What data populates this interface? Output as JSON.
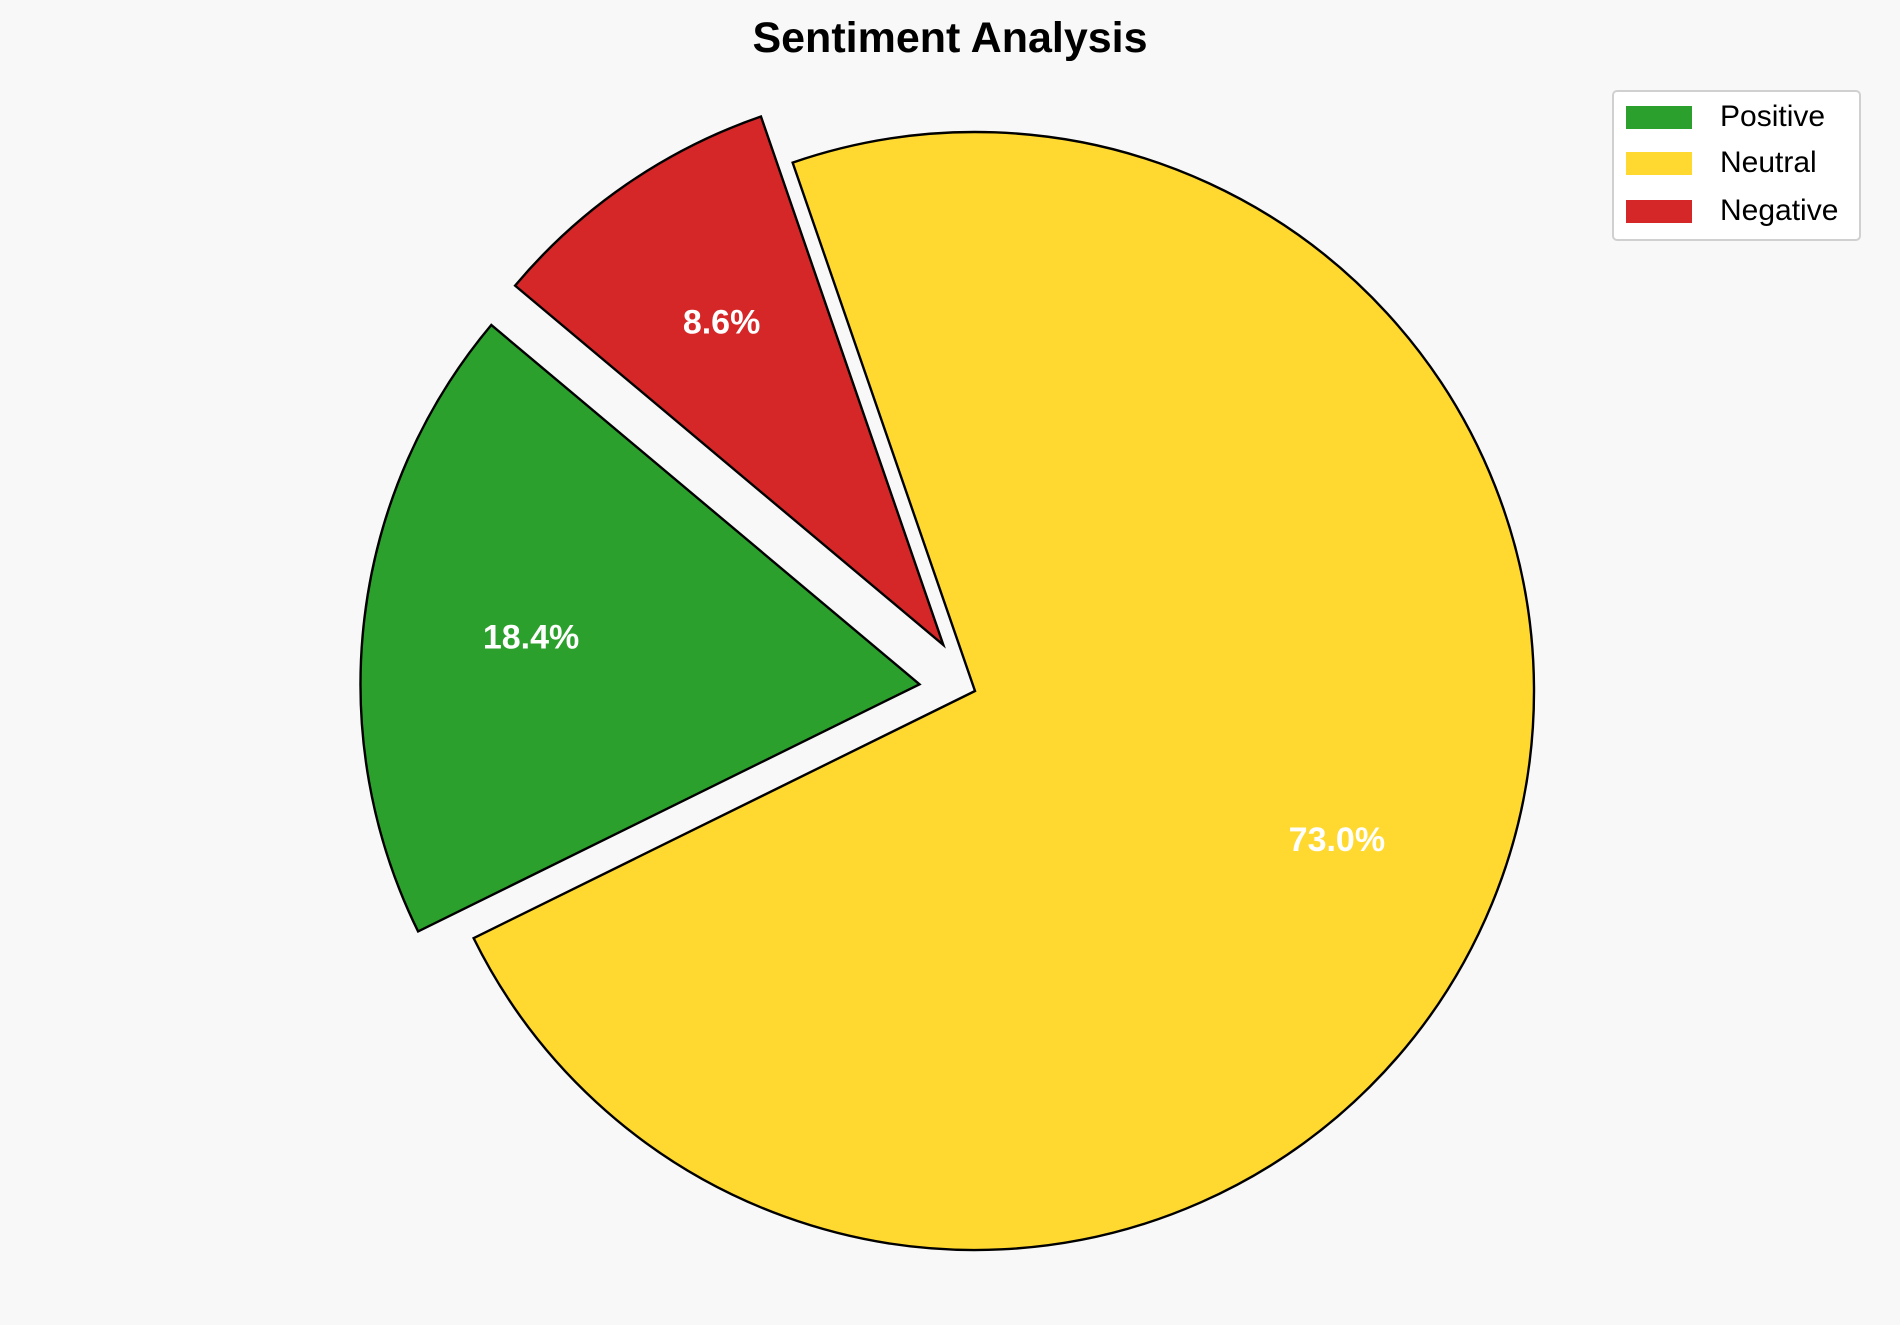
{
  "chart_data": {
    "type": "pie",
    "title": "Sentiment Analysis",
    "categories": [
      "Positive",
      "Neutral",
      "Negative"
    ],
    "values": [
      18.4,
      73.0,
      8.6
    ],
    "labels": [
      "18.4%",
      "73.0%",
      "8.6%"
    ],
    "colors": [
      "#2ca02c",
      "#ffd92f",
      "#d62728"
    ],
    "explode": [
      0.1,
      0,
      0.1
    ],
    "start_angle": 140,
    "legend_position": "top-right",
    "background": "#f8f8f8"
  }
}
